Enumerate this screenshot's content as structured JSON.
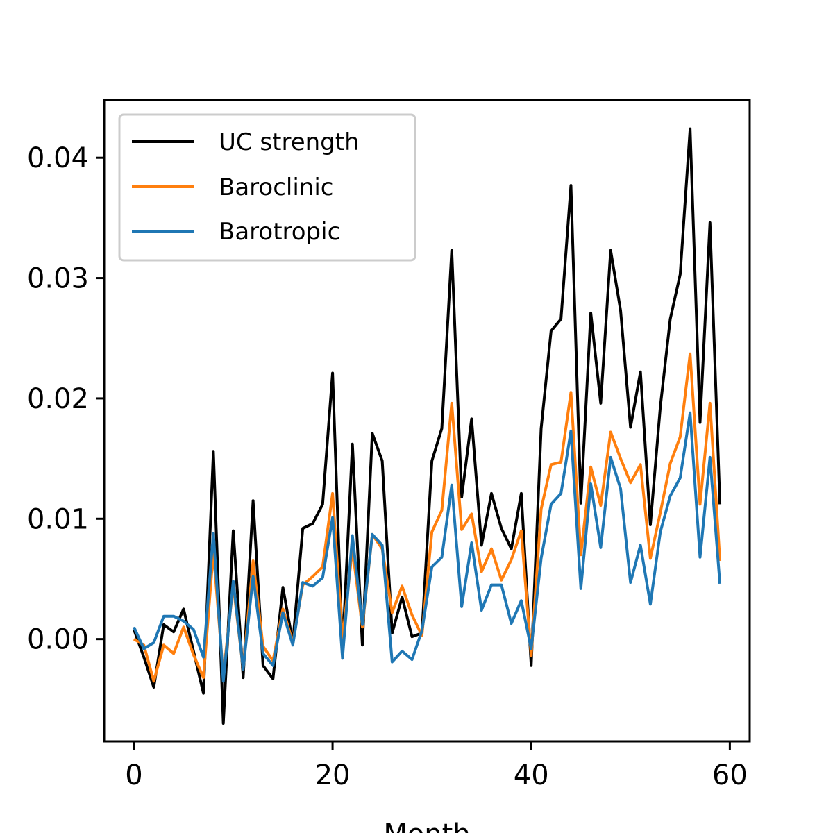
{
  "chart_data": {
    "type": "line",
    "title": "",
    "xlabel": "Month",
    "ylabel": "",
    "xlim": [
      -3,
      62
    ],
    "ylim": [
      -0.0085,
      0.0448
    ],
    "x_ticks": [
      0,
      20,
      40,
      60
    ],
    "x_tick_labels": [
      "0",
      "20",
      "40",
      "60"
    ],
    "y_ticks": [
      0.0,
      0.01,
      0.02,
      0.03,
      0.04
    ],
    "y_tick_labels": [
      "0.00",
      "0.01",
      "0.02",
      "0.03",
      "0.04"
    ],
    "grid": false,
    "legend_position": "top-left",
    "x": [
      0,
      1,
      2,
      3,
      4,
      5,
      6,
      7,
      8,
      9,
      10,
      11,
      12,
      13,
      14,
      15,
      16,
      17,
      18,
      19,
      20,
      21,
      22,
      23,
      24,
      25,
      26,
      27,
      28,
      29,
      30,
      31,
      32,
      33,
      34,
      35,
      36,
      37,
      38,
      39,
      40,
      41,
      42,
      43,
      44,
      45,
      46,
      47,
      48,
      49,
      50,
      51,
      52,
      53,
      54,
      55,
      56,
      57,
      58,
      59
    ],
    "series": [
      {
        "name": "UC strength",
        "color": "#000000",
        "values": [
          0.0008,
          -0.0015,
          -0.004,
          0.0012,
          0.0006,
          0.0025,
          -0.001,
          -0.0045,
          0.0156,
          -0.007,
          0.009,
          -0.0032,
          0.0115,
          -0.0022,
          -0.0033,
          0.0043,
          -0.0003,
          0.0092,
          0.0096,
          0.0112,
          0.0221,
          -0.001,
          0.0162,
          -0.0005,
          0.0171,
          0.0148,
          0.0005,
          0.0035,
          0.0002,
          0.0005,
          0.0148,
          0.0175,
          0.0323,
          0.0118,
          0.0183,
          0.0078,
          0.0121,
          0.0092,
          0.0075,
          0.0121,
          -0.0022,
          0.0175,
          0.0256,
          0.0266,
          0.0377,
          0.0113,
          0.0271,
          0.0196,
          0.0323,
          0.0273,
          0.0176,
          0.0222,
          0.0095,
          0.0193,
          0.0266,
          0.0303,
          0.0424,
          0.018,
          0.0346,
          0.0112
        ]
      },
      {
        "name": "Baroclinic",
        "color": "#ff7f0e",
        "values": [
          0.0,
          -0.0005,
          -0.0035,
          -0.0005,
          -0.0012,
          0.001,
          -0.0013,
          -0.0032,
          0.0073,
          -0.003,
          0.0045,
          -0.0025,
          0.0065,
          -0.0006,
          -0.0018,
          0.0025,
          -0.0003,
          0.0045,
          0.0052,
          0.006,
          0.0121,
          0.0,
          0.0075,
          0.001,
          0.0087,
          0.0075,
          0.0022,
          0.0044,
          0.002,
          0.0003,
          0.0089,
          0.0107,
          0.0196,
          0.0091,
          0.0104,
          0.0056,
          0.0075,
          0.0049,
          0.0066,
          0.009,
          -0.0014,
          0.0108,
          0.0145,
          0.0147,
          0.0205,
          0.007,
          0.0143,
          0.0111,
          0.0172,
          0.015,
          0.013,
          0.0145,
          0.0067,
          0.0105,
          0.0146,
          0.0168,
          0.0237,
          0.0112,
          0.0196,
          0.0065
        ]
      },
      {
        "name": "Barotropic",
        "color": "#1f77b4",
        "values": [
          0.001,
          -0.0008,
          -0.0003,
          0.0019,
          0.0019,
          0.0015,
          0.0008,
          -0.0015,
          0.0088,
          -0.0035,
          0.0048,
          -0.0025,
          0.0052,
          -0.0012,
          -0.0022,
          0.0022,
          -0.0005,
          0.0047,
          0.0044,
          0.0051,
          0.0101,
          -0.0016,
          0.0086,
          0.0012,
          0.0087,
          0.0078,
          -0.0019,
          -0.001,
          -0.0017,
          0.0007,
          0.006,
          0.0068,
          0.0128,
          0.0027,
          0.008,
          0.0024,
          0.0045,
          0.0045,
          0.0013,
          0.0032,
          -0.0008,
          0.0067,
          0.0112,
          0.0121,
          0.0173,
          0.0042,
          0.0129,
          0.0076,
          0.0151,
          0.0125,
          0.0047,
          0.0078,
          0.0029,
          0.0089,
          0.0119,
          0.0134,
          0.0188,
          0.0068,
          0.0151,
          0.0046
        ]
      }
    ]
  }
}
